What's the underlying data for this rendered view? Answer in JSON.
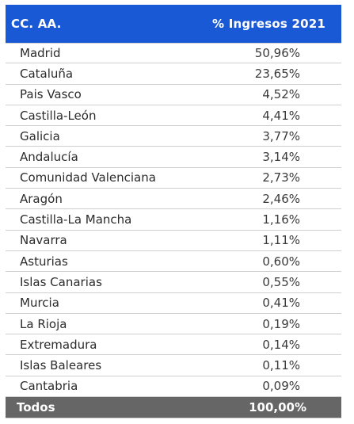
{
  "table": {
    "header": {
      "col1": "CC. AA.",
      "col2": "% Ingresos 2021"
    },
    "rows": [
      {
        "region": "Madrid",
        "value": "50,96%"
      },
      {
        "region": "Cataluña",
        "value": "23,65%"
      },
      {
        "region": "Pais Vasco",
        "value": "4,52%"
      },
      {
        "region": "Castilla-León",
        "value": "4,41%"
      },
      {
        "region": "Galicia",
        "value": "3,77%"
      },
      {
        "region": "Andalucía",
        "value": "3,14%"
      },
      {
        "region": "Comunidad Valenciana",
        "value": "2,73%"
      },
      {
        "region": "Aragón",
        "value": "2,46%"
      },
      {
        "region": "Castilla-La Mancha",
        "value": "1,16%"
      },
      {
        "region": "Navarra",
        "value": "1,11%"
      },
      {
        "region": "Asturias",
        "value": "0,60%"
      },
      {
        "region": "Islas Canarias",
        "value": "0,55%"
      },
      {
        "region": "Murcia",
        "value": "0,41%"
      },
      {
        "region": "La Rioja",
        "value": "0,19%"
      },
      {
        "region": "Extremadura",
        "value": "0,14%"
      },
      {
        "region": "Islas Baleares",
        "value": "0,11%"
      },
      {
        "region": "Cantabria",
        "value": "0,09%"
      }
    ],
    "total": {
      "label": "Todos",
      "value": "100,00%"
    },
    "colors": {
      "header_bg": "#1a59d6",
      "total_bg": "#666666"
    }
  }
}
